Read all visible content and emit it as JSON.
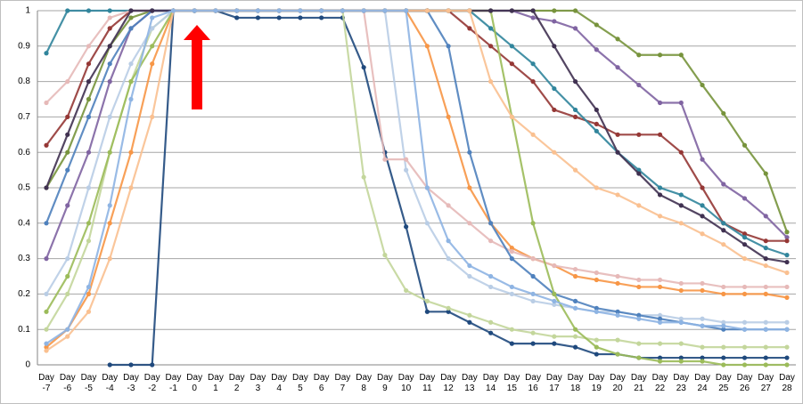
{
  "chart_data": {
    "type": "line",
    "categories": [
      "Day -7",
      "Day -6",
      "Day -5",
      "Day -4",
      "Day -3",
      "Day -2",
      "Day -1",
      "Day 0",
      "Day 1",
      "Day 2",
      "Day 3",
      "Day 4",
      "Day 5",
      "Day 6",
      "Day 7",
      "Day 8",
      "Day 9",
      "Day 10",
      "Day 11",
      "Day 12",
      "Day 13",
      "Day 14",
      "Day 15",
      "Day 16",
      "Day 17",
      "Day 18",
      "Day 19",
      "Day 20",
      "Day 21",
      "Day 22",
      "Day 23",
      "Day 24",
      "Day 25",
      "Day 26",
      "Day 27",
      "Day 28"
    ],
    "ylim": [
      0,
      1
    ],
    "yticks": [
      0,
      0.1,
      0.2,
      0.3,
      0.4,
      0.5,
      0.6,
      0.7,
      0.8,
      0.9,
      1
    ],
    "grid": true,
    "series": [
      {
        "color": "#77933c",
        "values": [
          0.5,
          0.6,
          0.75,
          0.9,
          0.98,
          1,
          1,
          1,
          1,
          1,
          1,
          1,
          1,
          1,
          1,
          1,
          1,
          1,
          1,
          1,
          1,
          1,
          1,
          1,
          1,
          1,
          0.96,
          0.92,
          0.875,
          0.875,
          0.875,
          0.79,
          0.71,
          0.62,
          0.54,
          0.375
        ]
      },
      {
        "color": "#8064a2",
        "values": [
          0.3,
          0.45,
          0.6,
          0.8,
          0.95,
          1,
          1,
          1,
          1,
          1,
          1,
          1,
          1,
          1,
          1,
          1,
          1,
          1,
          1,
          1,
          1,
          1,
          1,
          0.98,
          0.97,
          0.95,
          0.89,
          0.84,
          0.79,
          0.74,
          0.74,
          0.58,
          0.51,
          0.47,
          0.42,
          0.36
        ]
      },
      {
        "color": "#1f497d",
        "values": [
          null,
          null,
          null,
          0,
          0,
          0,
          1,
          1,
          1,
          0.98,
          0.98,
          0.98,
          0.98,
          0.98,
          0.98,
          0.84,
          0.6,
          0.39,
          0.15,
          0.15,
          0.12,
          0.09,
          0.06,
          0.06,
          0.06,
          0.05,
          0.03,
          0.03,
          0.02,
          0.02,
          0.02,
          0.02,
          0.02,
          0.02,
          0.02,
          0.02
        ]
      },
      {
        "color": "#c3d69b",
        "values": [
          0.1,
          0.2,
          0.35,
          0.6,
          0.8,
          0.95,
          1,
          1,
          1,
          1,
          1,
          1,
          1,
          1,
          1,
          0.53,
          0.31,
          0.21,
          0.18,
          0.16,
          0.14,
          0.12,
          0.1,
          0.09,
          0.08,
          0.08,
          0.07,
          0.07,
          0.06,
          0.06,
          0.06,
          0.05,
          0.05,
          0.05,
          0.05,
          0.05
        ]
      },
      {
        "color": "#f79646",
        "values": [
          0.05,
          0.1,
          0.2,
          0.4,
          0.6,
          0.85,
          1,
          1,
          1,
          1,
          1,
          1,
          1,
          1,
          1,
          1,
          1,
          1,
          0.9,
          0.7,
          0.5,
          0.4,
          0.33,
          0.3,
          0.28,
          0.25,
          0.24,
          0.23,
          0.22,
          0.22,
          0.21,
          0.21,
          0.2,
          0.2,
          0.2,
          0.19
        ]
      },
      {
        "color": "#953735",
        "values": [
          0.62,
          0.7,
          0.85,
          0.95,
          1,
          1,
          1,
          1,
          1,
          1,
          1,
          1,
          1,
          1,
          1,
          1,
          1,
          1,
          1,
          1,
          0.95,
          0.9,
          0.85,
          0.8,
          0.72,
          0.7,
          0.68,
          0.65,
          0.65,
          0.65,
          0.6,
          0.5,
          0.4,
          0.37,
          0.35,
          0.35
        ]
      },
      {
        "color": "#31859c",
        "values": [
          0.88,
          1,
          1,
          1,
          1,
          1,
          1,
          1,
          1,
          1,
          1,
          1,
          1,
          1,
          1,
          1,
          1,
          1,
          1,
          1,
          1,
          0.95,
          0.9,
          0.85,
          0.78,
          0.72,
          0.66,
          0.6,
          0.55,
          0.5,
          0.48,
          0.45,
          0.4,
          0.36,
          0.33,
          0.31
        ]
      },
      {
        "color": "#b9cde5",
        "values": [
          0.2,
          0.3,
          0.5,
          0.7,
          0.85,
          0.95,
          1,
          1,
          1,
          1,
          1,
          1,
          1,
          1,
          1,
          1,
          1,
          0.55,
          0.4,
          0.3,
          0.25,
          0.22,
          0.2,
          0.18,
          0.17,
          0.16,
          0.15,
          0.15,
          0.14,
          0.14,
          0.13,
          0.13,
          0.12,
          0.12,
          0.12,
          0.12
        ]
      },
      {
        "color": "#e6b9b8",
        "values": [
          0.74,
          0.8,
          0.9,
          0.98,
          1,
          1,
          1,
          1,
          1,
          1,
          1,
          1,
          1,
          1,
          1,
          1,
          0.58,
          0.58,
          0.5,
          0.45,
          0.4,
          0.35,
          0.32,
          0.3,
          0.28,
          0.27,
          0.26,
          0.25,
          0.24,
          0.24,
          0.23,
          0.23,
          0.22,
          0.22,
          0.22,
          0.22
        ]
      },
      {
        "color": "#4f81bd",
        "values": [
          0.4,
          0.55,
          0.7,
          0.85,
          0.95,
          1,
          1,
          1,
          1,
          1,
          1,
          1,
          1,
          1,
          1,
          1,
          1,
          1,
          1,
          0.9,
          0.6,
          0.4,
          0.3,
          0.25,
          0.2,
          0.18,
          0.16,
          0.15,
          0.14,
          0.13,
          0.12,
          0.11,
          0.1,
          0.1,
          0.1,
          0.1
        ]
      },
      {
        "color": "#9bbb59",
        "values": [
          0.15,
          0.25,
          0.4,
          0.6,
          0.8,
          0.9,
          1,
          1,
          1,
          1,
          1,
          1,
          1,
          1,
          1,
          1,
          1,
          1,
          1,
          1,
          1,
          1,
          0.7,
          0.4,
          0.2,
          0.1,
          0.05,
          0.03,
          0.02,
          0.01,
          0.01,
          0.01,
          0,
          0,
          0,
          0
        ]
      },
      {
        "color": "#403151",
        "values": [
          0.5,
          0.65,
          0.8,
          0.9,
          1,
          1,
          1,
          1,
          1,
          1,
          1,
          1,
          1,
          1,
          1,
          1,
          1,
          1,
          1,
          1,
          1,
          1,
          1,
          1,
          0.9,
          0.8,
          0.72,
          0.6,
          0.54,
          0.48,
          0.45,
          0.42,
          0.38,
          0.34,
          0.3,
          0.29
        ]
      },
      {
        "color": "#fac090",
        "values": [
          0.04,
          0.08,
          0.15,
          0.3,
          0.5,
          0.7,
          1,
          1,
          1,
          1,
          1,
          1,
          1,
          1,
          1,
          1,
          1,
          1,
          1,
          1,
          1,
          0.8,
          0.7,
          0.65,
          0.6,
          0.55,
          0.5,
          0.48,
          0.45,
          0.42,
          0.4,
          0.37,
          0.34,
          0.3,
          0.28,
          0.26
        ]
      },
      {
        "color": "#8eb4e3",
        "values": [
          0.06,
          0.1,
          0.22,
          0.45,
          0.75,
          0.98,
          1,
          1,
          1,
          1,
          1,
          1,
          1,
          1,
          1,
          1,
          1,
          1,
          0.5,
          0.35,
          0.28,
          0.25,
          0.22,
          0.2,
          0.18,
          0.16,
          0.15,
          0.14,
          0.13,
          0.12,
          0.12,
          0.11,
          0.11,
          0.1,
          0.1,
          0.1
        ]
      }
    ]
  }
}
